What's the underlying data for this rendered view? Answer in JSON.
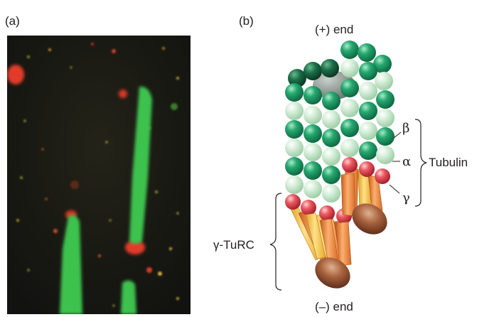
{
  "panels": {
    "a_label": "(a)",
    "b_label": "(b)"
  },
  "diagram": {
    "plus_end": "(+) end",
    "minus_end": "(–) end",
    "beta": "β",
    "alpha": "α",
    "gamma": "γ",
    "tubulin": "Tubulin",
    "gamma_turc": "γ-TuRC"
  },
  "colors": {
    "alpha_tubulin": "#cfe9d2",
    "beta_tubulin": "#1f9a66",
    "gamma_tubulin": "#e0505a",
    "turc_orange": "#f08a40",
    "turc_yellow": "#f6c24a",
    "cap_brown": "#9a5a3a",
    "micrograph_bg": "#1a1a14",
    "micrograph_green": "#3ec24e",
    "micrograph_red": "#e23a2a"
  }
}
